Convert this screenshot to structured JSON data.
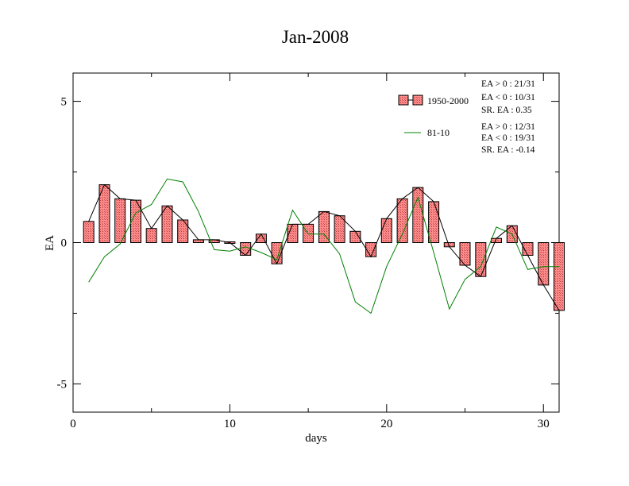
{
  "chart_data": {
    "type": "bar",
    "title": "Jan-2008",
    "xlabel": "days",
    "ylabel": "EA",
    "xlim": [
      0,
      31
    ],
    "ylim": [
      -6,
      6
    ],
    "x_ticks": [
      0,
      10,
      20,
      30
    ],
    "x_tick_labels": [
      "0",
      "10",
      "20",
      "30"
    ],
    "y_ticks": [
      -5,
      0,
      5
    ],
    "y_tick_labels": [
      "-5",
      "0",
      "5"
    ],
    "grid": false,
    "legend_position": "top-right",
    "x": [
      1,
      2,
      3,
      4,
      5,
      6,
      7,
      8,
      9,
      10,
      11,
      12,
      13,
      14,
      15,
      16,
      17,
      18,
      19,
      20,
      21,
      22,
      23,
      24,
      25,
      26,
      27,
      28,
      29,
      30,
      31
    ],
    "series": [
      {
        "name": "1950-2000",
        "kind": "bar+line",
        "bar_fill": "#ff8080",
        "line_color": "#000000",
        "values": [
          0.75,
          2.05,
          1.55,
          1.5,
          0.5,
          1.3,
          0.8,
          0.1,
          0.1,
          0.0,
          -0.45,
          0.3,
          -0.75,
          0.65,
          0.65,
          1.1,
          0.95,
          0.4,
          -0.5,
          0.85,
          1.55,
          1.95,
          1.45,
          -0.15,
          -0.8,
          -1.2,
          0.15,
          0.6,
          -0.45,
          -1.5,
          -2.4
        ],
        "stats": {
          "ea_pos": "EA > 0 : 21/31",
          "ea_neg": "EA < 0 : 10/31",
          "sr": "SR. EA :  0.35"
        }
      },
      {
        "name": "81-10",
        "kind": "line",
        "line_color": "#008000",
        "values": [
          -1.4,
          -0.5,
          -0.05,
          1.05,
          1.35,
          2.25,
          2.15,
          1.1,
          -0.25,
          -0.3,
          -0.15,
          -0.35,
          -0.6,
          1.15,
          0.3,
          0.3,
          -0.4,
          -2.1,
          -2.5,
          -0.85,
          0.3,
          1.6,
          -0.35,
          -2.35,
          -1.3,
          -0.85,
          0.55,
          0.3,
          -0.95,
          -0.85,
          -0.85
        ],
        "stats": {
          "ea_pos": "EA > 0 : 12/31",
          "ea_neg": "EA < 0 : 19/31",
          "sr": "SR. EA : -0.14"
        }
      }
    ]
  }
}
